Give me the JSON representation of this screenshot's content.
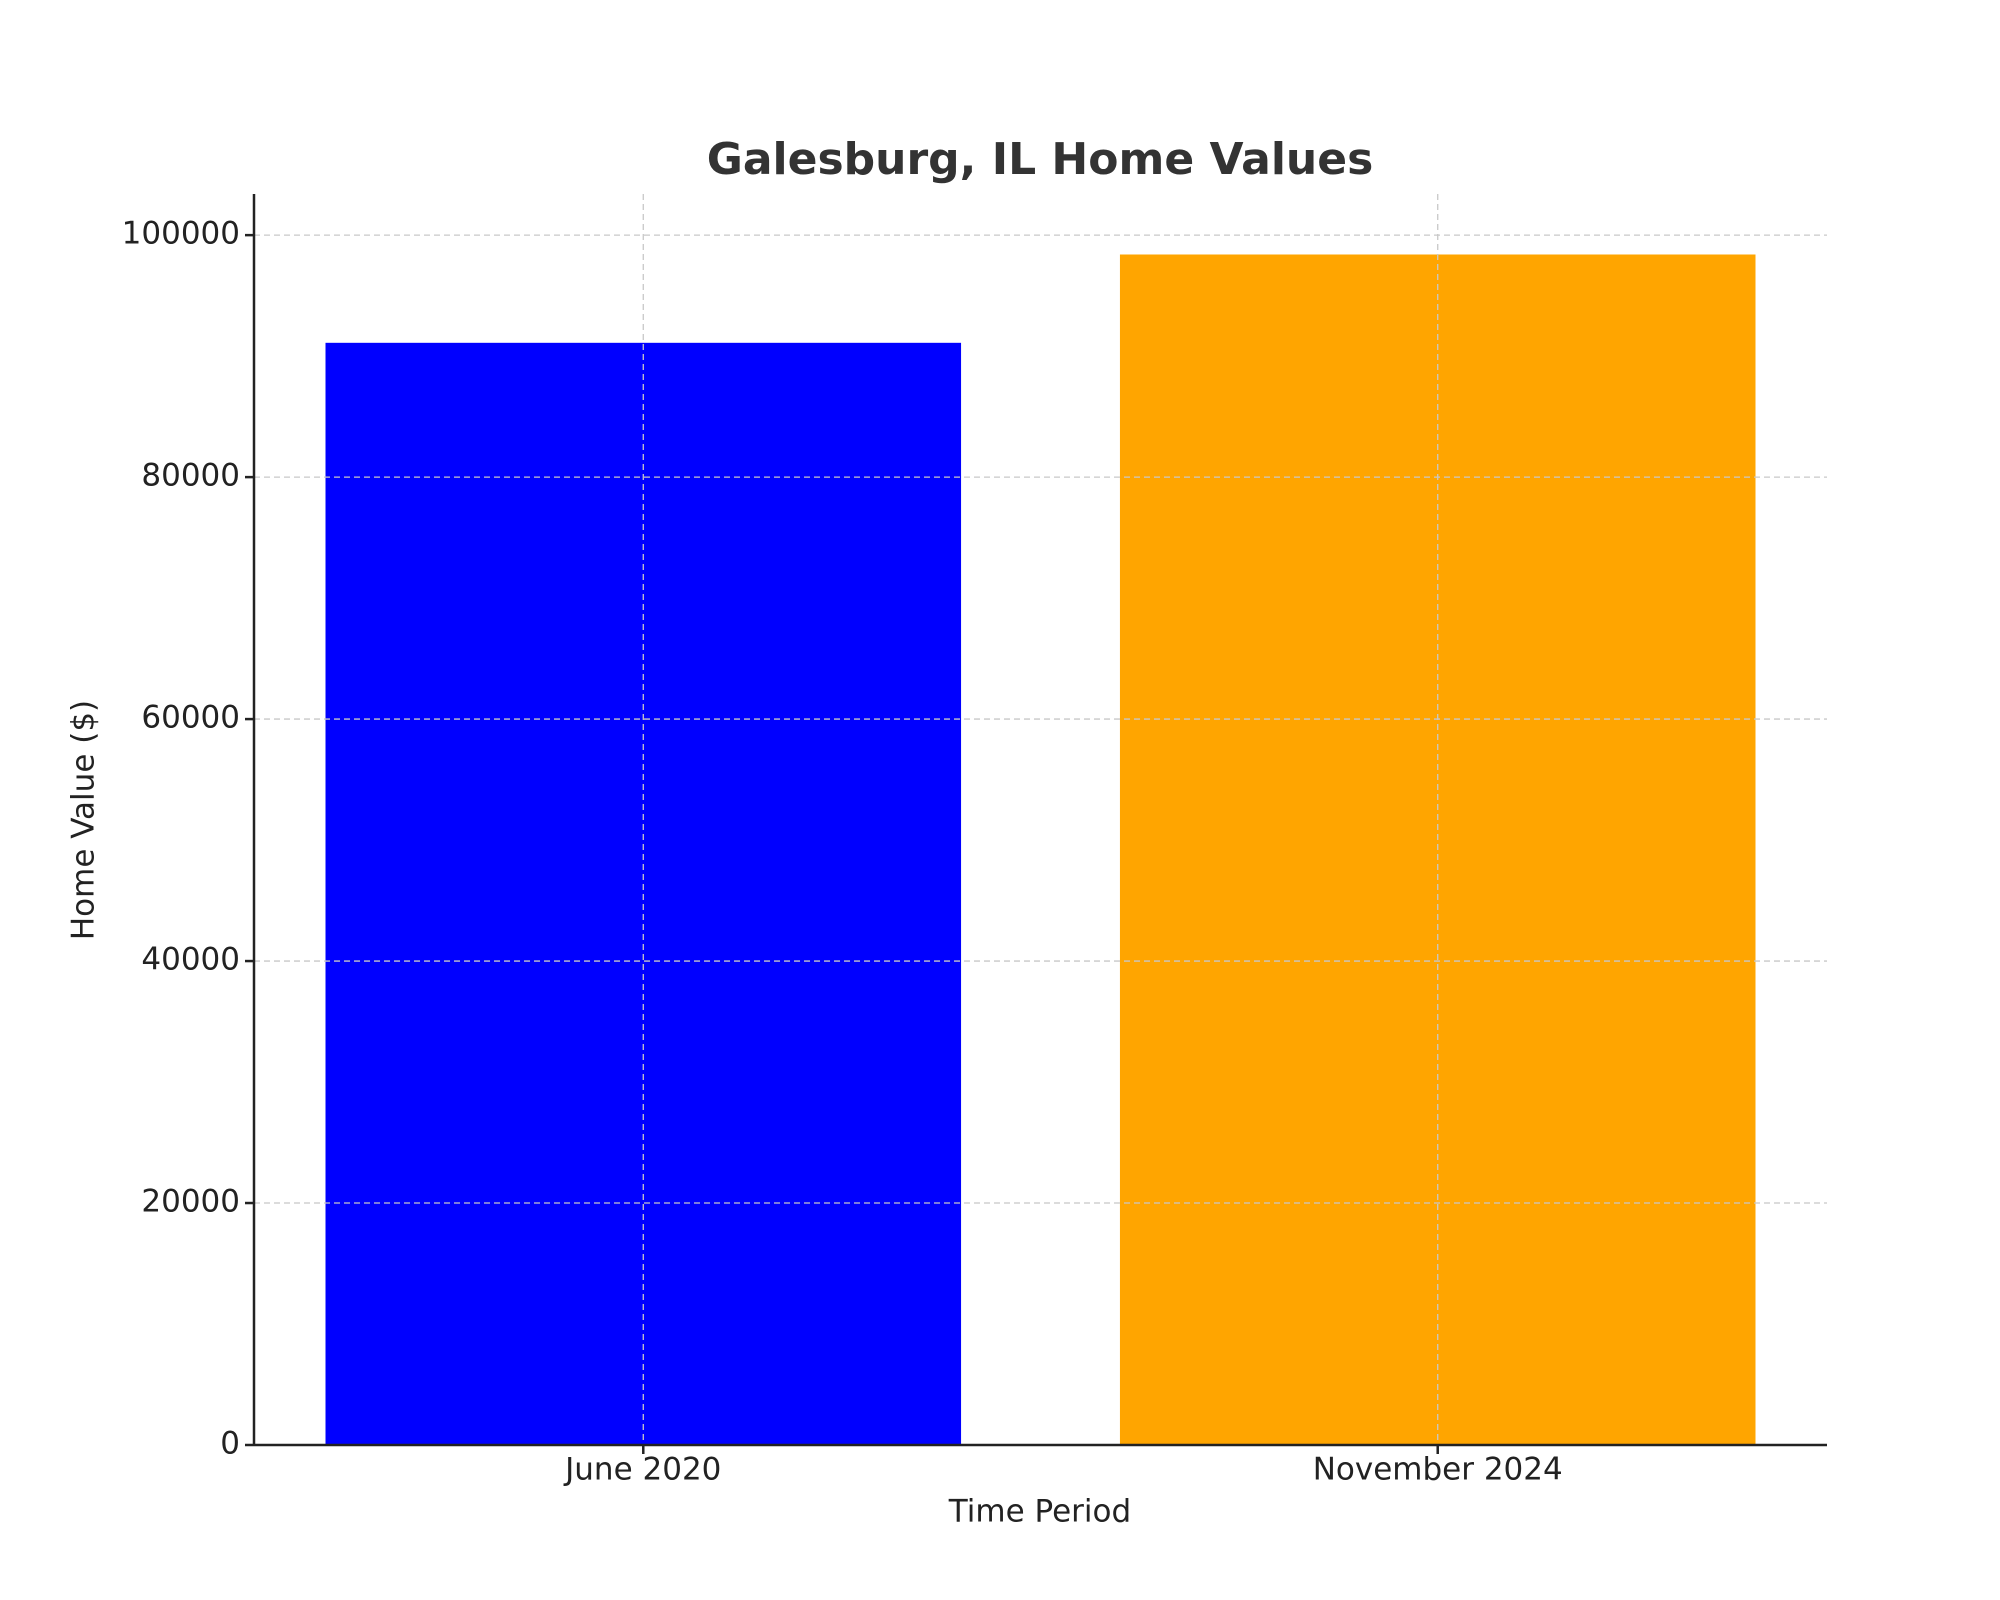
{
  "chart_data": {
    "type": "bar",
    "title": "Galesburg, IL Home Values",
    "x_label": "Time Period",
    "y_label": "Home Value ($)",
    "categories": [
      "June 2020",
      "November 2024"
    ],
    "values": [
      91100,
      98400
    ],
    "colors": [
      "#0000ff",
      "#ffa500"
    ],
    "ylim": [
      0,
      103400
    ],
    "yticks": [
      0,
      20000,
      40000,
      60000,
      80000,
      100000
    ],
    "grid": true
  }
}
